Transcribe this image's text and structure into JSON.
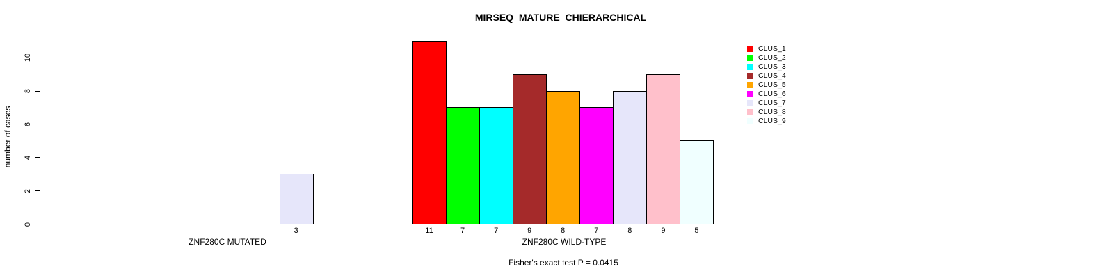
{
  "chart_data": {
    "type": "bar",
    "title": "MIRSEQ_MATURE_CHIERARCHICAL",
    "ylabel": "number of cases",
    "ylim": [
      0,
      11
    ],
    "yticks": [
      0,
      2,
      4,
      6,
      8,
      10
    ],
    "grid": false,
    "legend_position": "right",
    "clusters": [
      {
        "label": "CLUS_1",
        "color": "#FF0000"
      },
      {
        "label": "CLUS_2",
        "color": "#00FF00"
      },
      {
        "label": "CLUS_3",
        "color": "#00FFFF"
      },
      {
        "label": "CLUS_4",
        "color": "#A52A2A"
      },
      {
        "label": "CLUS_5",
        "color": "#FFA500"
      },
      {
        "label": "CLUS_6",
        "color": "#FF00FF"
      },
      {
        "label": "CLUS_7",
        "color": "#E6E6FA"
      },
      {
        "label": "CLUS_8",
        "color": "#FFC0CB"
      },
      {
        "label": "CLUS_9",
        "color": "#F0FFFF"
      }
    ],
    "groups": [
      {
        "label": "ZNF280C MUTATED",
        "values": [
          0,
          0,
          0,
          0,
          0,
          0,
          3,
          0,
          0
        ]
      },
      {
        "label": "ZNF280C WILD-TYPE",
        "values": [
          11,
          7,
          7,
          9,
          8,
          7,
          8,
          9,
          5
        ]
      }
    ],
    "annotation": "Fisher's exact test P = 0.0415"
  }
}
